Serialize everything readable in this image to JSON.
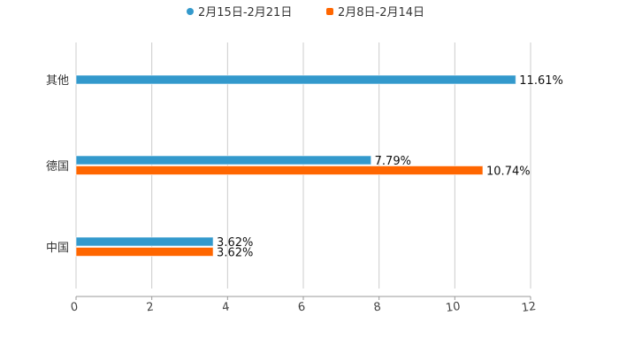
{
  "chart_data": {
    "type": "bar",
    "orientation": "horizontal",
    "title": "",
    "xlabel": "",
    "ylabel": "",
    "xlim": [
      0,
      12
    ],
    "xticks": [
      "0",
      "2",
      "4",
      "6",
      "8",
      "10",
      "12"
    ],
    "grid": true,
    "legend_position": "top-center",
    "categories": [
      "其他",
      "德国",
      "中国"
    ],
    "series": [
      {
        "name": "2月15日-2月21日",
        "color": "#3399cc",
        "values": [
          11.61,
          7.79,
          3.62
        ],
        "labels": [
          "11.61%",
          "7.79%",
          "3.62%"
        ]
      },
      {
        "name": "2月8日-2月14日",
        "color": "#ff6600",
        "values": [
          null,
          10.74,
          3.62
        ],
        "labels": [
          null,
          "10.74%",
          "3.62%"
        ]
      }
    ]
  }
}
